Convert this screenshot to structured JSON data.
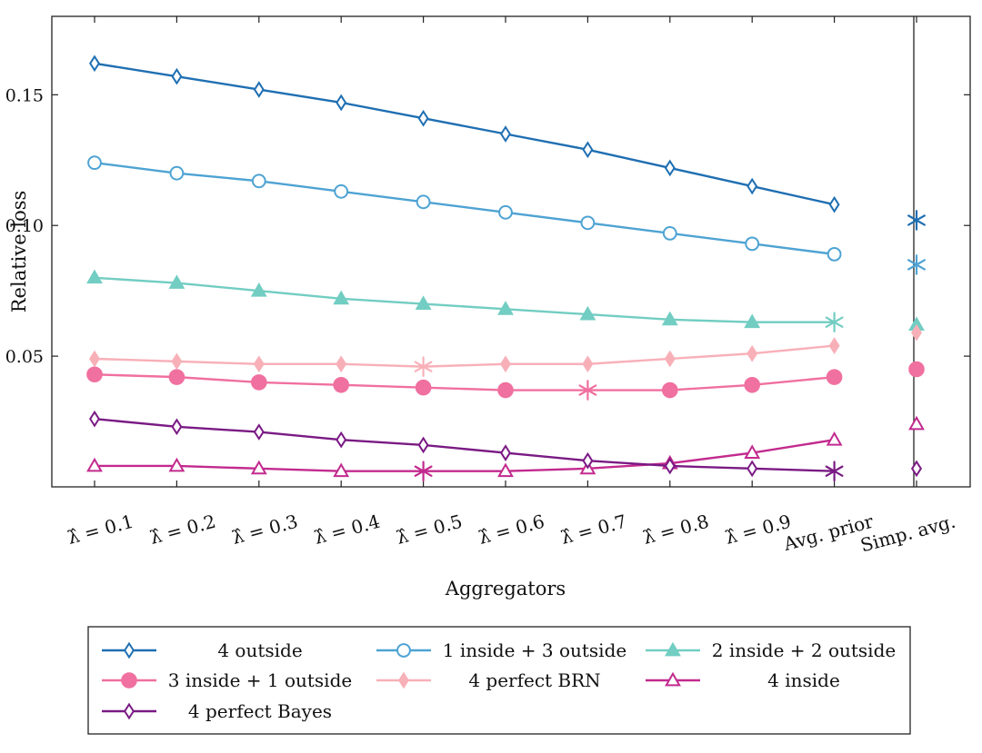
{
  "chart_data": {
    "type": "line",
    "title": "",
    "xlabel": "Aggregators",
    "ylabel": "Relative loss",
    "categories": [
      "λ̂ = 0.1",
      "λ̂ = 0.2",
      "λ̂ = 0.3",
      "λ̂ = 0.4",
      "λ̂ = 0.5",
      "λ̂ = 0.6",
      "λ̂ = 0.7",
      "λ̂ = 0.8",
      "λ̂ = 0.9",
      "Avg. prior",
      "Simp. avg."
    ],
    "ylim": [
      0.0,
      0.18
    ],
    "yticks": [
      0.05,
      0.1,
      0.15
    ],
    "ytick_labels": [
      "0.05",
      "0.10",
      "0.15"
    ],
    "grid": false,
    "legend_position": "bottom",
    "series": [
      {
        "name": "4 outside",
        "color": "#1f6fb2",
        "marker": "diamond-open",
        "values": [
          0.162,
          0.157,
          0.152,
          0.147,
          0.141,
          0.135,
          0.129,
          0.122,
          0.115,
          0.108,
          0.102
        ],
        "highlight_index": 10
      },
      {
        "name": "1 inside + 3 outside",
        "color": "#4ea3d3",
        "marker": "circle-open",
        "values": [
          0.124,
          0.12,
          0.117,
          0.113,
          0.109,
          0.105,
          0.101,
          0.097,
          0.093,
          0.089,
          0.085
        ],
        "highlight_index": 10
      },
      {
        "name": "2 inside + 2 outside",
        "color": "#72cdc2",
        "marker": "triangle-filled",
        "values": [
          0.08,
          0.078,
          0.075,
          0.072,
          0.07,
          0.068,
          0.066,
          0.064,
          0.063,
          0.063,
          0.062
        ],
        "highlight_index": 9
      },
      {
        "name": "3 inside + 1 outside",
        "color": "#f0709f",
        "marker": "circle-filled",
        "values": [
          0.043,
          0.042,
          0.04,
          0.039,
          0.038,
          0.037,
          0.037,
          0.037,
          0.039,
          0.042,
          0.045
        ],
        "highlight_index": 6
      },
      {
        "name": "4 perfect BRN",
        "color": "#f8b0b8",
        "marker": "diamond-filled",
        "values": [
          0.049,
          0.048,
          0.047,
          0.047,
          0.046,
          0.047,
          0.047,
          0.049,
          0.051,
          0.054,
          0.059
        ],
        "highlight_index": 4
      },
      {
        "name": "4 inside",
        "color": "#c22a8e",
        "marker": "triangle-open",
        "values": [
          0.008,
          0.008,
          0.007,
          0.006,
          0.006,
          0.006,
          0.007,
          0.009,
          0.013,
          0.018,
          0.024
        ],
        "highlight_index": 4
      },
      {
        "name": "4 perfect Bayes",
        "color": "#7a1a84",
        "marker": "diamond-open",
        "values": [
          0.026,
          0.023,
          0.021,
          0.018,
          0.016,
          0.013,
          0.01,
          0.008,
          0.007,
          0.006,
          0.007
        ],
        "highlight_index": 9
      }
    ]
  }
}
